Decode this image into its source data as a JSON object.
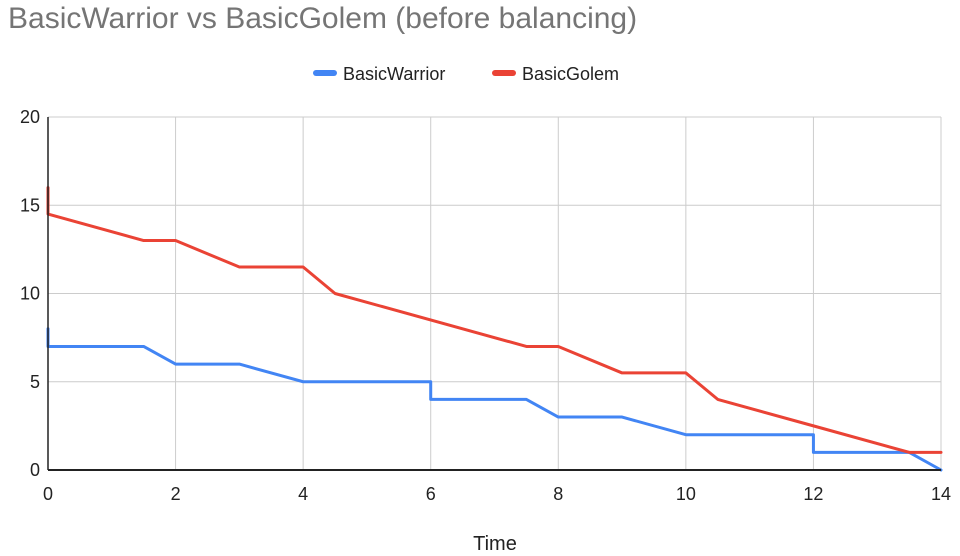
{
  "chart_data": {
    "type": "line",
    "title": "BasicWarrior vs BasicGolem (before balancing)",
    "xlabel": "Time",
    "ylabel": "",
    "xlim": [
      0,
      14
    ],
    "ylim": [
      0,
      20
    ],
    "xticks": [
      "0",
      "2",
      "4",
      "6",
      "8",
      "10",
      "12",
      "14"
    ],
    "yticks": [
      "0",
      "5",
      "10",
      "15",
      "20"
    ],
    "grid": true,
    "legend_position": "top-center",
    "series": [
      {
        "name": "BasicWarrior",
        "color": "#4285f4",
        "points": [
          [
            0,
            8
          ],
          [
            0,
            7
          ],
          [
            1.5,
            7
          ],
          [
            2,
            6
          ],
          [
            3,
            6
          ],
          [
            4,
            5
          ],
          [
            6,
            5
          ],
          [
            6,
            4
          ],
          [
            7.5,
            4
          ],
          [
            8,
            3
          ],
          [
            9,
            3
          ],
          [
            10,
            2
          ],
          [
            12,
            2
          ],
          [
            12,
            1
          ],
          [
            13.5,
            1
          ],
          [
            14,
            0
          ]
        ]
      },
      {
        "name": "BasicGolem",
        "color": "#ea4335",
        "points": [
          [
            0,
            16
          ],
          [
            0,
            14.5
          ],
          [
            1.5,
            13
          ],
          [
            2,
            13
          ],
          [
            3,
            11.5
          ],
          [
            4,
            11.5
          ],
          [
            4.5,
            10
          ],
          [
            7.5,
            7
          ],
          [
            8,
            7
          ],
          [
            9,
            5.5
          ],
          [
            10,
            5.5
          ],
          [
            10.5,
            4
          ],
          [
            12,
            2.5
          ],
          [
            13.5,
            1
          ],
          [
            14,
            1
          ]
        ]
      }
    ]
  }
}
